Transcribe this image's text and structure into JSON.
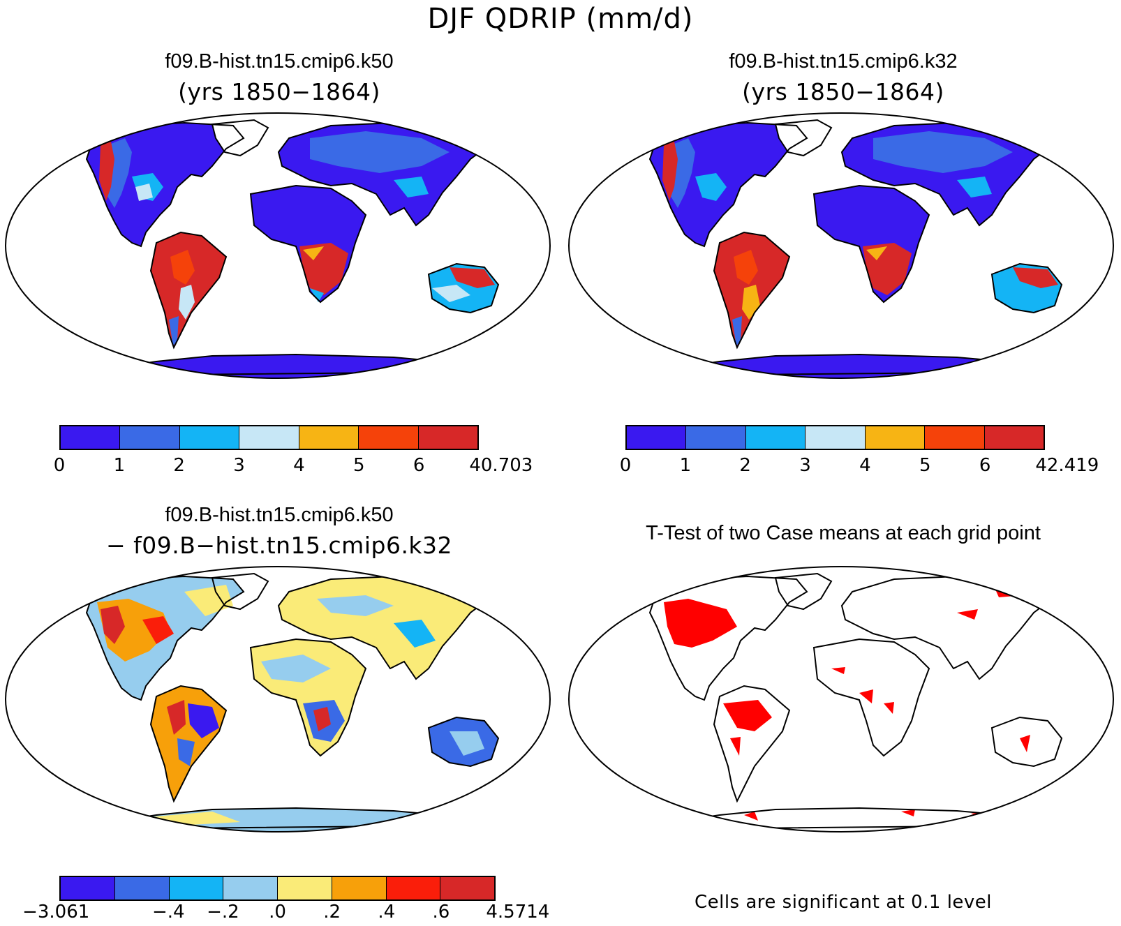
{
  "figure_title": "DJF QDRIP (mm/d)",
  "panels": {
    "top_left": {
      "title": "f09.B-hist.tn15.cmip6.k50",
      "subtitle": "(yrs 1850−1864)",
      "colorbar": {
        "colors": [
          "#3a19f0",
          "#3a6ae6",
          "#14b4f5",
          "#c7e7f6",
          "#f7b414",
          "#f5420a",
          "#d72828"
        ],
        "labels": [
          "0",
          "1",
          "2",
          "3",
          "4",
          "5",
          "6",
          "40.703"
        ]
      }
    },
    "top_right": {
      "title": "f09.B-hist.tn15.cmip6.k32",
      "subtitle": "(yrs 1850−1864)",
      "colorbar": {
        "colors": [
          "#3a19f0",
          "#3a6ae6",
          "#14b4f5",
          "#c7e7f6",
          "#f7b414",
          "#f5420a",
          "#d72828"
        ],
        "labels": [
          "0",
          "1",
          "2",
          "3",
          "4",
          "5",
          "6",
          "42.419"
        ]
      }
    },
    "bottom_left": {
      "title": "f09.B-hist.tn15.cmip6.k50",
      "subtitle": "− f09.B−hist.tn15.cmip6.k32",
      "colorbar": {
        "colors": [
          "#3a19f0",
          "#3a6ae6",
          "#14b4f5",
          "#96cdee",
          "#faeb78",
          "#f7a00a",
          "#fa1e0a",
          "#d72828"
        ],
        "labels": [
          "−3.061",
          "",
          "−.4",
          "−.2",
          ".0",
          ".2",
          ".4",
          ".6",
          "4.5714"
        ]
      }
    },
    "bottom_right": {
      "title": "T-Test of two Case means at each grid point",
      "significance_color": "#ff0000",
      "footnote": "Cells are significant at 0.1 level"
    }
  }
}
